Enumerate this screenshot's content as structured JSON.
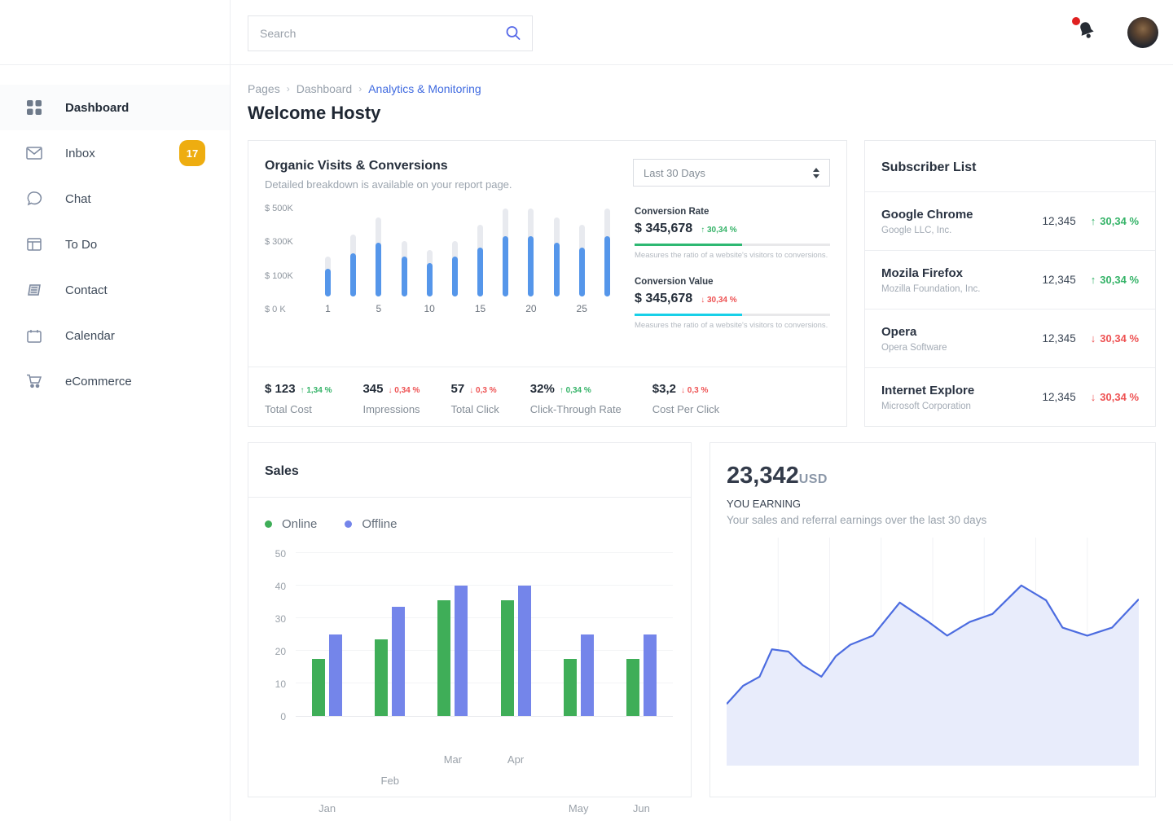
{
  "topbar": {
    "search_placeholder": "Search"
  },
  "sidebar": {
    "items": [
      {
        "label": "Dashboard",
        "icon": "dashboard-grid",
        "active": true
      },
      {
        "label": "Inbox",
        "icon": "envelope",
        "badge": "17"
      },
      {
        "label": "Chat",
        "icon": "chat-bubble"
      },
      {
        "label": "To Do",
        "icon": "kanban-board"
      },
      {
        "label": "Contact",
        "icon": "contact-book"
      },
      {
        "label": "Calendar",
        "icon": "calendar"
      },
      {
        "label": "eCommerce",
        "icon": "shopping-cart"
      }
    ]
  },
  "breadcrumb": {
    "items": [
      "Pages",
      "Dashboard",
      "Analytics & Monitoring"
    ]
  },
  "page": {
    "title": "Welcome Hosty"
  },
  "organic": {
    "title": "Organic Visits & Conversions",
    "subtitle": "Detailed breakdown is available on your report page.",
    "period": "Last 30 Days",
    "conversion_rate": {
      "label": "Conversion Rate",
      "value": "$ 345,678",
      "delta": "30,34 %",
      "direction": "up",
      "bar_color": "#2eb872",
      "bar_fill_pct": 55,
      "caption": "Measures the ratio of a website's visitors to conversions."
    },
    "conversion_value": {
      "label": "Conversion Value",
      "value": "$ 345,678",
      "delta": "30,34 %",
      "direction": "down",
      "bar_color": "#18d0e8",
      "bar_fill_pct": 55,
      "caption": "Measures the ratio of a website's visitors to conversions."
    },
    "stats": [
      {
        "value": "$ 123",
        "delta": "1,34 %",
        "direction": "up",
        "label": "Total Cost"
      },
      {
        "value": "345",
        "delta": "0,34 %",
        "direction": "down",
        "label": "Impressions"
      },
      {
        "value": "57",
        "delta": "0,3 %",
        "direction": "down",
        "label": "Total Click"
      },
      {
        "value": "32%",
        "delta": "0,34 %",
        "direction": "up",
        "label": "Click-Through Rate"
      },
      {
        "value": "$3,2",
        "delta": "0,3 %",
        "direction": "down",
        "label": "Cost Per Click"
      }
    ]
  },
  "subscribers": {
    "title": "Subscriber List",
    "rows": [
      {
        "name": "Google Chrome",
        "company": "Google LLC, Inc.",
        "count": "12,345",
        "delta": "30,34 %",
        "direction": "up"
      },
      {
        "name": "Mozila Firefox",
        "company": "Mozilla Foundation, Inc.",
        "count": "12,345",
        "delta": "30,34 %",
        "direction": "up"
      },
      {
        "name": "Opera",
        "company": "Opera Software",
        "count": "12,345",
        "delta": "30,34 %",
        "direction": "down"
      },
      {
        "name": "Internet Explore",
        "company": "Microsoft Corporation",
        "count": "12,345",
        "delta": "30,34 %",
        "direction": "down"
      }
    ]
  },
  "sales": {
    "title": "Sales",
    "legend": [
      {
        "label": "Online",
        "color": "#3fae58"
      },
      {
        "label": "Offline",
        "color": "#7485ea"
      }
    ]
  },
  "earning": {
    "amount": "23,342",
    "currency": "USD",
    "label": "YOU EARNING",
    "subtitle": "Your sales and referral earnings over the last 30 days"
  },
  "colors": {
    "breadcrumb_link": "#3f6ae0",
    "bar_blue": "#5596ea",
    "bar_track": "#e8eaef",
    "green": "#35b368",
    "red": "#ee5253",
    "badge_yellow": "#eead10",
    "earnings_line": "#4c6ce0",
    "earnings_fill": "#e8ecfb"
  },
  "chart_data": [
    {
      "type": "bar",
      "title": "Organic Visits & Conversions",
      "x": [
        1,
        2.5,
        5,
        7.5,
        10,
        12.5,
        15,
        17.5,
        20,
        22.5,
        25,
        27.5
      ],
      "xticks": [
        "1",
        "",
        "5",
        "",
        "10",
        "",
        "15",
        "",
        "20",
        "",
        "25",
        ""
      ],
      "series": [
        {
          "name": "total",
          "color": "#e8eaef",
          "values": [
            230,
            360,
            460,
            320,
            270,
            320,
            415,
            510,
            510,
            460,
            415,
            510
          ]
        },
        {
          "name": "organic-visits",
          "color": "#5596ea",
          "values": [
            160,
            250,
            310,
            230,
            195,
            230,
            285,
            350,
            350,
            310,
            285,
            350
          ]
        }
      ],
      "ylim": [
        0,
        520
      ],
      "ytick_labels": [
        "$ 500K",
        "$ 300K",
        "$ 100K",
        "$ 0 K"
      ],
      "unit": "K USD",
      "grid": false
    },
    {
      "type": "bar",
      "title": "Sales",
      "categories": [
        "Jan",
        "Feb",
        "Mar",
        "Apr",
        "May",
        "Jun"
      ],
      "series": [
        {
          "name": "Online",
          "color": "#3fae58",
          "values": [
            17.5,
            23.5,
            35.5,
            35.5,
            17.5,
            17.5
          ]
        },
        {
          "name": "Offline",
          "color": "#7485ea",
          "values": [
            25,
            33.5,
            40,
            40,
            25,
            25
          ]
        }
      ],
      "ylim": [
        0,
        50
      ],
      "yticks": [
        0,
        10,
        20,
        30,
        40,
        50
      ],
      "grid": true,
      "legend_position": "top-left"
    },
    {
      "type": "area",
      "title": "Earnings over last 30 days",
      "line_color": "#4c6ce0",
      "fill_color": "#e8ecfb",
      "grid": "vertical",
      "points": [
        [
          0,
          73
        ],
        [
          4,
          65
        ],
        [
          8,
          61
        ],
        [
          11,
          49
        ],
        [
          15,
          50
        ],
        [
          18.5,
          56
        ],
        [
          23,
          61
        ],
        [
          26.5,
          52
        ],
        [
          30,
          47
        ],
        [
          35.5,
          43
        ],
        [
          42,
          28.5
        ],
        [
          49,
          37
        ],
        [
          53.5,
          43
        ],
        [
          59,
          37
        ],
        [
          64.5,
          33.5
        ],
        [
          71.5,
          21
        ],
        [
          77.5,
          27.5
        ],
        [
          81.5,
          39.5
        ],
        [
          87.5,
          43
        ],
        [
          93.5,
          39.5
        ],
        [
          100,
          27
        ]
      ]
    }
  ]
}
